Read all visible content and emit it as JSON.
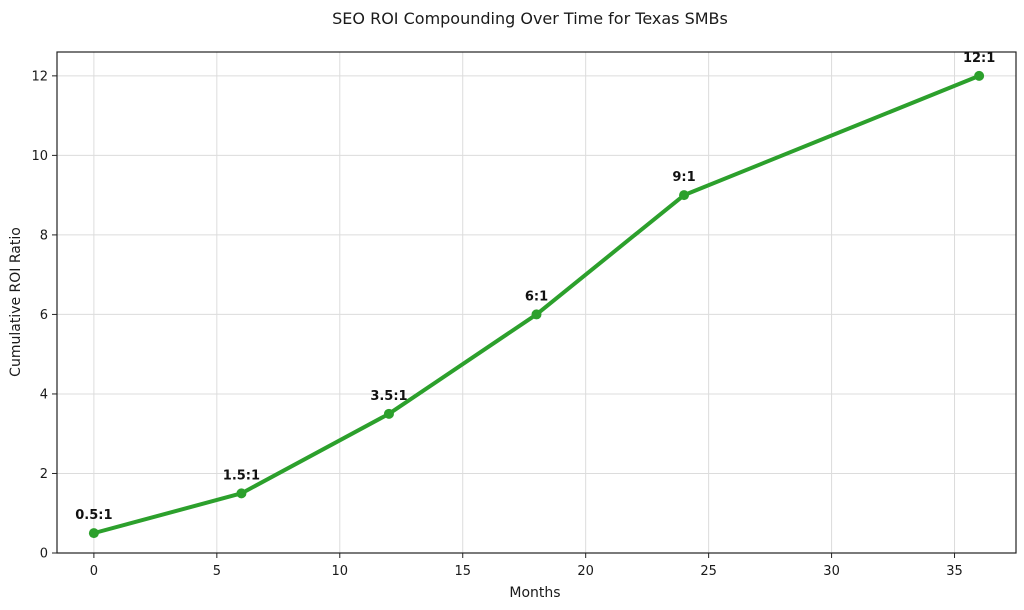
{
  "chart_data": {
    "type": "line",
    "title": "SEO ROI Compounding Over Time for Texas SMBs",
    "xlabel": "Months",
    "ylabel": "Cumulative ROI Ratio",
    "xlim": [
      -1.5,
      37.5
    ],
    "ylim": [
      0,
      12.6
    ],
    "xticks": [
      0,
      5,
      10,
      15,
      20,
      25,
      30,
      35
    ],
    "yticks": [
      0,
      2,
      4,
      6,
      8,
      10,
      12
    ],
    "grid": true,
    "legend": "none",
    "series": [
      {
        "color": "#2ca02c",
        "x": [
          0,
          6,
          12,
          18,
          24,
          36
        ],
        "y": [
          0.5,
          1.5,
          3.5,
          6,
          9,
          12
        ],
        "labels": [
          "0.5:1",
          "1.5:1",
          "3.5:1",
          "6:1",
          "9:1",
          "12:1"
        ]
      }
    ]
  }
}
